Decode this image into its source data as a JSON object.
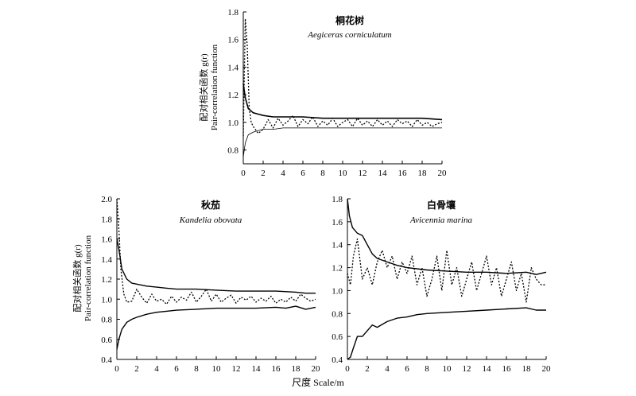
{
  "figure": {
    "x_axis_label": "尺度 Scale/m"
  },
  "chart_data": [
    {
      "type": "line",
      "title": "桐花树",
      "subtitle": "Aegiceras corniculatum",
      "ylabel_cn": "配对相关函数 g(r)",
      "ylabel_en": "Pair-correlation function",
      "xlim": [
        0,
        20
      ],
      "ylim": [
        0.7,
        1.8
      ],
      "x_ticks": [
        0,
        2,
        4,
        6,
        8,
        10,
        12,
        14,
        16,
        18,
        20
      ],
      "y_ticks": [
        0.8,
        1.0,
        1.2,
        1.4,
        1.6,
        1.8
      ],
      "y_tick_labels": [
        "0.8",
        "1.0",
        "1.2",
        "1.4",
        "1.6",
        "1.8"
      ],
      "series": [
        {
          "style": "dotted",
          "x": [
            0,
            0.2,
            0.4,
            0.6,
            0.8,
            1,
            1.5,
            2,
            2.5,
            3,
            3.5,
            4,
            4.5,
            5,
            5.5,
            6,
            6.5,
            7,
            7.5,
            8,
            8.5,
            9,
            9.5,
            10,
            10.5,
            11,
            11.5,
            12,
            12.5,
            13,
            13.5,
            14,
            14.5,
            15,
            15.5,
            16,
            16.5,
            17,
            17.5,
            18,
            18.5,
            19,
            19.5,
            20
          ],
          "y": [
            0.9,
            1.75,
            1.55,
            1.1,
            1.0,
            0.97,
            0.92,
            0.95,
            1.02,
            0.96,
            1.03,
            0.98,
            1.01,
            1.05,
            0.97,
            1.02,
            0.99,
            1.04,
            0.97,
            1.01,
            0.98,
            1.03,
            0.97,
            1.0,
            1.02,
            0.97,
            1.03,
            0.98,
            1.01,
            0.97,
            1.02,
            0.98,
            1.01,
            0.97,
            1.02,
            0.99,
            1.01,
            0.97,
            1.02,
            0.98,
            1.0,
            0.97,
            0.99,
            1.0
          ]
        },
        {
          "style": "solid-thick",
          "x": [
            0,
            0.2,
            0.5,
            1,
            1.5,
            2,
            3,
            4,
            5,
            6,
            8,
            10,
            12,
            14,
            16,
            18,
            20
          ],
          "y": [
            1.28,
            1.18,
            1.1,
            1.07,
            1.06,
            1.05,
            1.04,
            1.04,
            1.04,
            1.04,
            1.03,
            1.03,
            1.03,
            1.03,
            1.03,
            1.03,
            1.02
          ]
        },
        {
          "style": "solid-thin",
          "x": [
            0,
            0.2,
            0.5,
            1,
            1.5,
            2,
            3,
            4,
            6,
            8,
            10,
            12,
            14,
            16,
            18,
            20
          ],
          "y": [
            0.75,
            0.85,
            0.91,
            0.93,
            0.94,
            0.95,
            0.95,
            0.96,
            0.96,
            0.96,
            0.96,
            0.96,
            0.96,
            0.96,
            0.96,
            0.96
          ]
        }
      ]
    },
    {
      "type": "line",
      "title": "秋茄",
      "subtitle": "Kandelia obovata",
      "ylabel_cn": "配对相关函数 g(r)",
      "ylabel_en": "Pair-correlation function",
      "xlim": [
        0,
        20
      ],
      "ylim": [
        0.4,
        2.0
      ],
      "x_ticks": [
        0,
        2,
        4,
        6,
        8,
        10,
        12,
        14,
        16,
        18,
        20
      ],
      "y_ticks": [
        0.4,
        0.6,
        0.8,
        1.0,
        1.2,
        1.4,
        1.6,
        1.8,
        2.0
      ],
      "y_tick_labels": [
        "0.4",
        "0.6",
        "0.8",
        "1.0",
        "1.2",
        "1.4",
        "1.6",
        "1.8",
        "2.0"
      ],
      "series": [
        {
          "style": "dotted",
          "x": [
            0,
            0.2,
            0.4,
            0.7,
            1,
            1.5,
            2,
            2.5,
            3,
            3.5,
            4,
            4.5,
            5,
            5.5,
            6,
            6.5,
            7,
            7.5,
            8,
            8.5,
            9,
            9.5,
            10,
            10.5,
            11,
            11.5,
            12,
            12.5,
            13,
            13.5,
            14,
            14.5,
            15,
            15.5,
            16,
            16.5,
            17,
            17.5,
            18,
            18.5,
            19,
            19.5,
            20
          ],
          "y": [
            2.0,
            1.7,
            1.3,
            1.05,
            0.97,
            0.98,
            1.1,
            1.02,
            0.96,
            1.05,
            0.98,
            1.0,
            0.95,
            1.03,
            0.97,
            1.02,
            0.99,
            1.07,
            0.97,
            1.03,
            1.1,
            0.98,
            1.05,
            0.97,
            1.01,
            1.04,
            0.96,
            1.02,
            0.99,
            1.03,
            0.97,
            1.01,
            0.98,
            1.03,
            0.96,
            1.0,
            0.97,
            1.02,
            0.98,
            1.05,
            1.01,
            0.98,
            1.0
          ]
        },
        {
          "style": "solid",
          "x": [
            0,
            0.2,
            0.5,
            1,
            1.5,
            2,
            3,
            4,
            5,
            6,
            8,
            10,
            12,
            14,
            16,
            18,
            19,
            20
          ],
          "y": [
            1.6,
            1.5,
            1.3,
            1.2,
            1.16,
            1.15,
            1.13,
            1.12,
            1.11,
            1.1,
            1.1,
            1.09,
            1.08,
            1.08,
            1.08,
            1.07,
            1.06,
            1.06
          ]
        },
        {
          "style": "solid",
          "x": [
            0,
            0.2,
            0.5,
            1,
            1.5,
            2,
            3,
            4,
            5,
            6,
            8,
            10,
            12,
            14,
            16,
            17,
            18,
            19,
            20
          ],
          "y": [
            0.5,
            0.6,
            0.7,
            0.77,
            0.8,
            0.82,
            0.85,
            0.87,
            0.88,
            0.89,
            0.9,
            0.91,
            0.91,
            0.91,
            0.92,
            0.91,
            0.93,
            0.9,
            0.92
          ]
        }
      ]
    },
    {
      "type": "line",
      "title": "白骨壤",
      "subtitle": "Avicennia marina",
      "ylabel_cn": "",
      "ylabel_en": "",
      "xlim": [
        0,
        20
      ],
      "ylim": [
        0.4,
        1.8
      ],
      "x_ticks": [
        0,
        2,
        4,
        6,
        8,
        10,
        12,
        14,
        16,
        18,
        20
      ],
      "y_ticks": [
        0.4,
        0.6,
        0.8,
        1.0,
        1.2,
        1.4,
        1.6,
        1.8
      ],
      "y_tick_labels": [
        "0.4",
        "0.6",
        "0.8",
        "1.0",
        "1.2",
        "1.4",
        "1.6",
        "1.8"
      ],
      "series": [
        {
          "style": "dotted",
          "x": [
            0,
            0.3,
            0.6,
            1,
            1.5,
            2,
            2.5,
            3,
            3.5,
            4,
            4.5,
            5,
            5.5,
            6,
            6.5,
            7,
            7.5,
            8,
            8.5,
            9,
            9.5,
            10,
            10.5,
            11,
            11.5,
            12,
            12.5,
            13,
            13.5,
            14,
            14.5,
            15,
            15.5,
            16,
            16.5,
            17,
            17.5,
            18,
            18.5,
            19,
            19.5,
            20
          ],
          "y": [
            1.15,
            1.05,
            1.3,
            1.45,
            1.1,
            1.2,
            1.05,
            1.25,
            1.35,
            1.2,
            1.3,
            1.1,
            1.25,
            1.15,
            1.3,
            1.05,
            1.2,
            0.95,
            1.1,
            1.3,
            1.0,
            1.35,
            1.05,
            1.2,
            0.95,
            1.1,
            1.25,
            1.0,
            1.15,
            1.3,
            1.05,
            1.2,
            0.95,
            1.1,
            1.25,
            1.0,
            1.15,
            0.9,
            1.2,
            1.1,
            1.05,
            1.05
          ]
        },
        {
          "style": "solid",
          "x": [
            0,
            0.2,
            0.5,
            1,
            1.5,
            2,
            2.5,
            3,
            4,
            5,
            6,
            8,
            10,
            12,
            14,
            16,
            18,
            19,
            20
          ],
          "y": [
            1.8,
            1.65,
            1.55,
            1.5,
            1.48,
            1.4,
            1.32,
            1.28,
            1.25,
            1.22,
            1.2,
            1.18,
            1.17,
            1.16,
            1.16,
            1.15,
            1.16,
            1.14,
            1.16
          ]
        },
        {
          "style": "solid",
          "x": [
            0,
            0.3,
            0.6,
            1,
            1.5,
            2,
            2.5,
            3,
            4,
            5,
            6,
            7,
            8,
            10,
            12,
            14,
            16,
            18,
            19,
            20
          ],
          "y": [
            0.4,
            0.42,
            0.5,
            0.6,
            0.6,
            0.65,
            0.7,
            0.68,
            0.73,
            0.76,
            0.77,
            0.79,
            0.8,
            0.81,
            0.82,
            0.83,
            0.84,
            0.85,
            0.83,
            0.83
          ]
        }
      ]
    }
  ]
}
